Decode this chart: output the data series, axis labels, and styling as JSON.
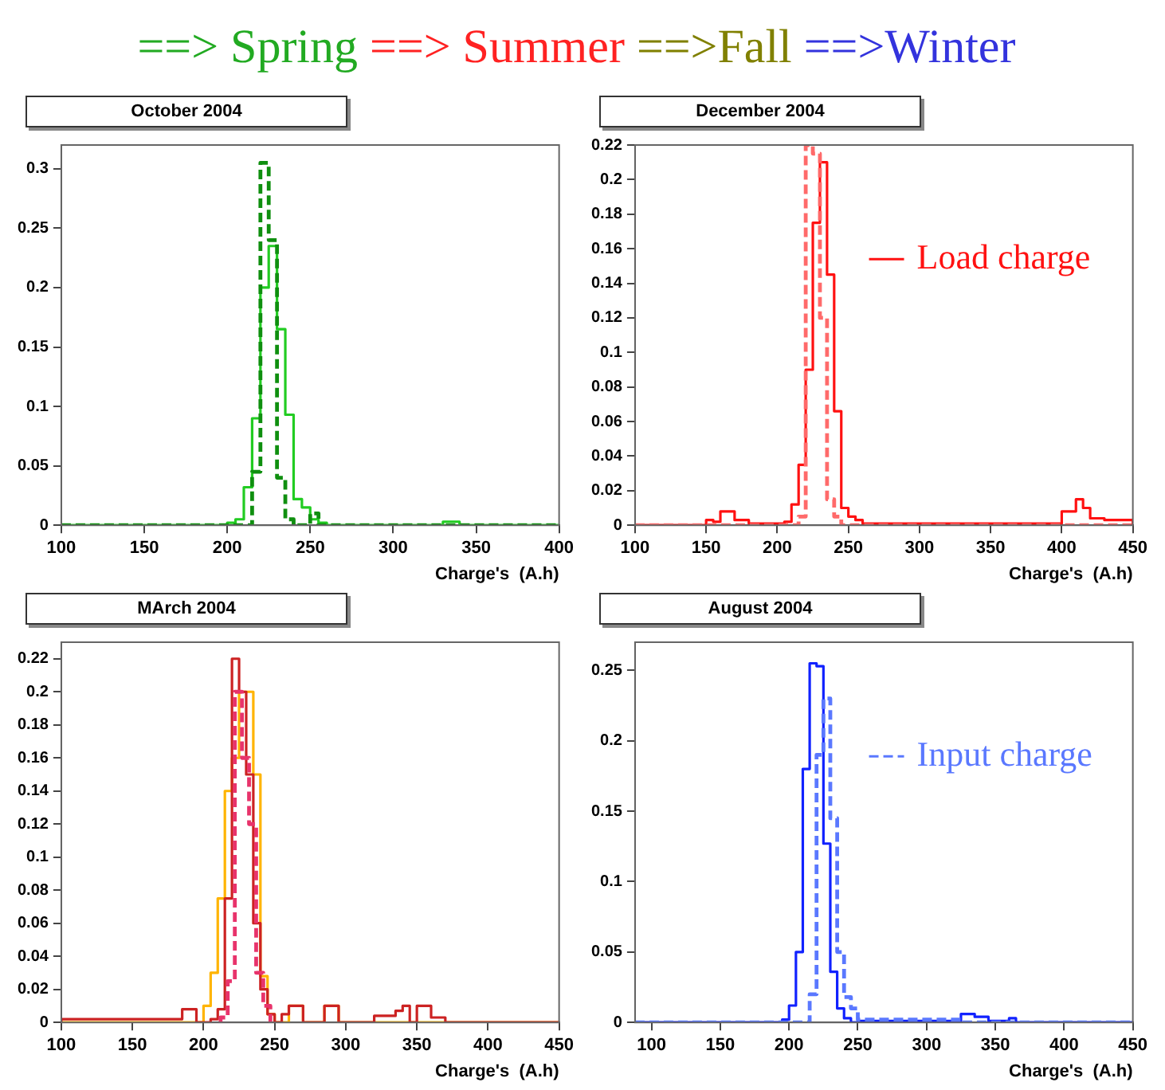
{
  "chart_data": [
    {
      "type": "other",
      "annotations": [
        "==> Spring",
        "==> Summer",
        "==>Fall",
        "==>Winter"
      ],
      "colors": [
        "#22aa22",
        "#ff2222",
        "#808000",
        "#3333dd"
      ]
    },
    {
      "type": "histogram",
      "title": "October 2004",
      "xlabel": "Charge's  (A.h)",
      "bins": [
        100,
        200,
        205,
        210,
        215,
        220,
        225,
        230,
        235,
        240,
        245,
        250,
        255,
        260,
        330,
        340,
        400
      ],
      "series": [
        {
          "color": "#22cc22",
          "line_style": "solid",
          "values": [
            0,
            0.002,
            0.005,
            0.032,
            0.09,
            0.2,
            0.235,
            0.165,
            0.093,
            0.022,
            0.015,
            0.005,
            0.002,
            0,
            0.003,
            0
          ]
        },
        {
          "color": "#0f8f0f",
          "line_style": "dashed",
          "values": [
            0,
            0,
            0,
            0,
            0.045,
            0.305,
            0.24,
            0.04,
            0.005,
            0,
            0,
            0.01,
            0,
            0,
            0,
            0
          ]
        }
      ],
      "xlim": [
        100,
        400
      ],
      "ylim": [
        0,
        0.32
      ],
      "xticks": [
        100,
        150,
        200,
        250,
        300,
        350,
        400
      ],
      "yticks": [
        0,
        0.05,
        0.1,
        0.15,
        0.2,
        0.25,
        0.3
      ]
    },
    {
      "type": "histogram",
      "title": "December 2004",
      "xlabel": "Charge's  (A.h)",
      "legend": "right",
      "bins": [
        100,
        150,
        155,
        160,
        170,
        180,
        205,
        210,
        215,
        220,
        225,
        230,
        235,
        240,
        245,
        250,
        255,
        260,
        400,
        410,
        415,
        420,
        430,
        450
      ],
      "series": [
        {
          "name": "Load charge",
          "color": "#ff1111",
          "line_style": "solid",
          "values": [
            0,
            0.003,
            0.002,
            0.008,
            0.003,
            0.001,
            0.002,
            0.012,
            0.035,
            0.09,
            0.175,
            0.21,
            0.145,
            0.066,
            0.01,
            0.005,
            0.003,
            0.001,
            0.008,
            0.015,
            0.01,
            0.004,
            0.003
          ]
        },
        {
          "color": "#ff6a6a",
          "line_style": "dashed",
          "values": [
            0,
            0,
            0,
            0,
            0,
            0,
            0,
            0,
            0.005,
            0.22,
            0.215,
            0.12,
            0.015,
            0.005,
            0,
            0,
            0,
            0,
            0,
            0,
            0,
            0,
            0
          ]
        }
      ],
      "xlim": [
        100,
        450
      ],
      "ylim": [
        0,
        0.22
      ],
      "xticks": [
        100,
        150,
        200,
        250,
        300,
        350,
        400,
        450
      ],
      "yticks": [
        0,
        0.02,
        0.04,
        0.06,
        0.08,
        0.1,
        0.12,
        0.14,
        0.16,
        0.18,
        0.2,
        0.22
      ]
    },
    {
      "type": "histogram",
      "title": "MArch 2004",
      "xlabel": "Charge's  (A.h)",
      "bins": [
        100,
        185,
        195,
        200,
        205,
        210,
        215,
        220,
        225,
        230,
        235,
        240,
        245,
        250,
        255,
        260,
        270,
        285,
        295,
        320,
        335,
        340,
        345,
        350,
        360,
        370,
        450
      ],
      "series": [
        {
          "color": "#ffb400",
          "line_style": "solid",
          "values": [
            0,
            0,
            0,
            0.01,
            0.03,
            0.075,
            0.14,
            0.16,
            0.2,
            0.2,
            0.15,
            0.028,
            0.005,
            0,
            0,
            0.01,
            0,
            0.01,
            0,
            0,
            0,
            0,
            0,
            0,
            0,
            0
          ]
        },
        {
          "color": "#cc2222",
          "line_style": "solid",
          "values": [
            0.002,
            0.008,
            0,
            0,
            0.002,
            0.008,
            0.075,
            0.22,
            0.2,
            0.15,
            0.06,
            0.02,
            0.005,
            0,
            0.005,
            0.01,
            0,
            0.01,
            0,
            0.004,
            0.007,
            0.01,
            0,
            0.01,
            0.003,
            0
          ]
        },
        {
          "color": "#e8336b",
          "line_style": "dashed",
          "bins": [
            212,
            217,
            222,
            227,
            232,
            237,
            242,
            247
          ],
          "values": [
            0.003,
            0.025,
            0.2,
            0.16,
            0.12,
            0.03,
            0.01
          ]
        }
      ],
      "xlim": [
        100,
        450
      ],
      "ylim": [
        0,
        0.23
      ],
      "xticks": [
        100,
        150,
        200,
        250,
        300,
        350,
        400,
        450
      ],
      "yticks": [
        0,
        0.02,
        0.04,
        0.06,
        0.08,
        0.1,
        0.12,
        0.14,
        0.16,
        0.18,
        0.2,
        0.22
      ]
    },
    {
      "type": "histogram",
      "title": "August 2004",
      "xlabel": "Charge's  (A.h)",
      "legend": "right",
      "bins": [
        88,
        195,
        200,
        205,
        210,
        215,
        220,
        225,
        230,
        235,
        240,
        245,
        250,
        325,
        335,
        345,
        360,
        365,
        450
      ],
      "series": [
        {
          "color": "#1122ff",
          "line_style": "solid",
          "values": [
            0,
            0.002,
            0.012,
            0.05,
            0.18,
            0.255,
            0.253,
            0.127,
            0.036,
            0.01,
            0.003,
            0,
            0.001,
            0.006,
            0.004,
            0.001,
            0.003,
            0
          ]
        },
        {
          "name": "Input charge",
          "color": "#5a78ff",
          "line_style": "dashed",
          "values": [
            0,
            0,
            0,
            0,
            0,
            0.02,
            0.19,
            0.23,
            0.145,
            0.05,
            0.018,
            0.01,
            0.002,
            0,
            0,
            0,
            0,
            0
          ]
        }
      ],
      "xlim": [
        88,
        450
      ],
      "ylim": [
        0,
        0.27
      ],
      "xticks": [
        100,
        150,
        200,
        250,
        300,
        350,
        400,
        450
      ],
      "yticks": [
        0,
        0.05,
        0.1,
        0.15,
        0.2,
        0.25
      ]
    }
  ]
}
